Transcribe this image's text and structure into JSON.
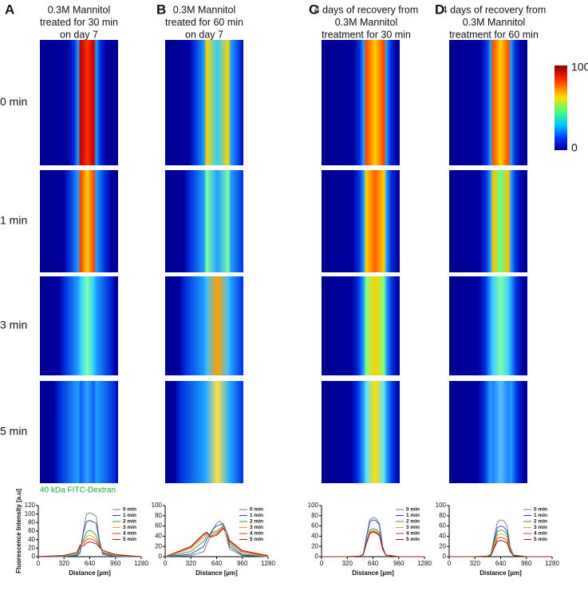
{
  "panels": [
    {
      "letter": "A",
      "title": [
        "0.3M Mannitol",
        "treated for 30 min",
        "on day 7"
      ]
    },
    {
      "letter": "B",
      "title": [
        "0.3M Mannitol",
        "treated for 60 min",
        "on day 7"
      ]
    },
    {
      "letter": "C",
      "title": [
        "4 days of recovery from",
        "0.3M Mannitol",
        "treatment for 30 min"
      ]
    },
    {
      "letter": "D",
      "title": [
        "4 days of recovery from",
        "0.3M Mannitol",
        "treatment for 60 min"
      ]
    }
  ],
  "row_labels": [
    "0 min",
    "1 min",
    "3 min",
    "5 min"
  ],
  "colorbar": {
    "ticks": [
      0,
      100
    ]
  },
  "stain_label": "40 kDa FITC-Dextran",
  "chart_data": [
    {
      "type": "line",
      "xlabel": "Distance [µm]",
      "ylabel": "Fluorescence Intensity [a.u]",
      "x": [
        0,
        320,
        480,
        520,
        560,
        600,
        640,
        680,
        720,
        760,
        800,
        960,
        1280
      ],
      "xlim": [
        0,
        1280
      ],
      "xticks": [
        0,
        320,
        640,
        960,
        1280
      ],
      "ylim": [
        0,
        120
      ],
      "yticks": [
        0,
        20,
        40,
        60,
        80,
        100,
        120
      ],
      "series": [
        {
          "name": "0 min",
          "color": "#777777",
          "values": [
            0,
            0,
            2,
            8,
            60,
            100,
            103,
            100,
            95,
            40,
            5,
            0,
            0
          ]
        },
        {
          "name": "1 min",
          "color": "#1f3fbf",
          "values": [
            0,
            0,
            3,
            12,
            55,
            82,
            85,
            82,
            78,
            35,
            8,
            0,
            0
          ]
        },
        {
          "name": "2 min",
          "color": "#2ca02c",
          "values": [
            0,
            1,
            5,
            20,
            40,
            58,
            62,
            58,
            50,
            28,
            10,
            2,
            0
          ]
        },
        {
          "name": "3 min",
          "color": "#f0a030",
          "values": [
            0,
            2,
            8,
            25,
            35,
            48,
            50,
            47,
            40,
            25,
            12,
            3,
            0
          ]
        },
        {
          "name": "4 min",
          "color": "#e8301c",
          "values": [
            0,
            3,
            10,
            28,
            30,
            40,
            42,
            40,
            35,
            25,
            15,
            4,
            0
          ]
        },
        {
          "name": "5 min",
          "color": "#8b1a1a",
          "values": [
            0,
            3,
            10,
            25,
            25,
            32,
            35,
            33,
            30,
            22,
            15,
            5,
            0
          ]
        }
      ]
    },
    {
      "type": "line",
      "xlabel": "Distance [µm]",
      "x": [
        0,
        320,
        480,
        520,
        560,
        600,
        640,
        680,
        720,
        760,
        800,
        960,
        1280
      ],
      "xlim": [
        0,
        1280
      ],
      "xticks": [
        0,
        320,
        640,
        960,
        1280
      ],
      "ylim": [
        0,
        100
      ],
      "yticks": [
        0,
        20,
        40,
        60,
        80,
        100
      ],
      "series": [
        {
          "name": "0 min",
          "color": "#777777",
          "values": [
            0,
            2,
            10,
            25,
            40,
            55,
            65,
            70,
            60,
            40,
            15,
            2,
            0
          ]
        },
        {
          "name": "1 min",
          "color": "#1f3fbf",
          "values": [
            0,
            5,
            20,
            35,
            45,
            55,
            60,
            62,
            65,
            50,
            20,
            3,
            0
          ]
        },
        {
          "name": "2 min",
          "color": "#2ca02c",
          "values": [
            0,
            10,
            30,
            42,
            45,
            48,
            50,
            55,
            60,
            50,
            25,
            5,
            0
          ]
        },
        {
          "name": "3 min",
          "color": "#f0a030",
          "values": [
            0,
            15,
            38,
            45,
            42,
            45,
            48,
            52,
            58,
            50,
            28,
            8,
            0
          ]
        },
        {
          "name": "4 min",
          "color": "#e8301c",
          "values": [
            0,
            18,
            42,
            47,
            40,
            42,
            45,
            50,
            56,
            50,
            30,
            10,
            1
          ]
        },
        {
          "name": "5 min",
          "color": "#8b1a1a",
          "values": [
            0,
            20,
            45,
            48,
            38,
            40,
            42,
            48,
            55,
            50,
            32,
            12,
            2
          ]
        }
      ]
    },
    {
      "type": "line",
      "xlabel": "Distance [µm]",
      "x": [
        0,
        320,
        480,
        520,
        560,
        600,
        640,
        680,
        720,
        760,
        800,
        960,
        1280
      ],
      "xlim": [
        0,
        1280
      ],
      "xticks": [
        0,
        320,
        640,
        960,
        1280
      ],
      "ylim": [
        0,
        100
      ],
      "yticks": [
        0,
        20,
        40,
        60,
        80,
        100
      ],
      "series": [
        {
          "name": "0 min",
          "color": "#777777",
          "values": [
            0,
            0,
            1,
            5,
            40,
            72,
            77,
            74,
            65,
            20,
            3,
            0,
            0
          ]
        },
        {
          "name": "1 min",
          "color": "#1f3fbf",
          "values": [
            0,
            0,
            1,
            5,
            38,
            68,
            72,
            70,
            62,
            19,
            3,
            0,
            0
          ]
        },
        {
          "name": "2 min",
          "color": "#2ca02c",
          "values": [
            0,
            0,
            1,
            4,
            30,
            52,
            55,
            53,
            48,
            16,
            3,
            0,
            0
          ]
        },
        {
          "name": "3 min",
          "color": "#f0a030",
          "values": [
            0,
            0,
            1,
            4,
            28,
            49,
            52,
            50,
            45,
            15,
            3,
            0,
            0
          ]
        },
        {
          "name": "4 min",
          "color": "#e8301c",
          "values": [
            0,
            0,
            1,
            4,
            27,
            47,
            50,
            48,
            43,
            15,
            3,
            0,
            0
          ]
        },
        {
          "name": "5 min",
          "color": "#8b1a1a",
          "values": [
            0,
            0,
            1,
            4,
            26,
            45,
            48,
            46,
            41,
            14,
            3,
            0,
            0
          ]
        }
      ]
    },
    {
      "type": "line",
      "xlabel": "Distance [µm]",
      "x": [
        0,
        320,
        480,
        520,
        560,
        600,
        640,
        680,
        720,
        760,
        800,
        960,
        1280
      ],
      "xlim": [
        0,
        1280
      ],
      "xticks": [
        0,
        320,
        640,
        960,
        1280
      ],
      "ylim": [
        0,
        100
      ],
      "yticks": [
        0,
        20,
        40,
        60,
        80,
        100
      ],
      "series": [
        {
          "name": "0 min",
          "color": "#777777",
          "values": [
            0,
            0,
            1,
            5,
            38,
            68,
            72,
            70,
            60,
            18,
            3,
            0,
            0
          ]
        },
        {
          "name": "1 min",
          "color": "#1f3fbf",
          "values": [
            0,
            0,
            1,
            4,
            32,
            57,
            60,
            58,
            50,
            16,
            3,
            0,
            0
          ]
        },
        {
          "name": "2 min",
          "color": "#2ca02c",
          "values": [
            0,
            0,
            1,
            4,
            28,
            49,
            52,
            50,
            44,
            14,
            3,
            0,
            0
          ]
        },
        {
          "name": "3 min",
          "color": "#f0a030",
          "values": [
            0,
            0,
            1,
            3,
            24,
            42,
            45,
            43,
            38,
            12,
            2,
            0,
            0
          ]
        },
        {
          "name": "4 min",
          "color": "#e8301c",
          "values": [
            0,
            0,
            1,
            3,
            20,
            36,
            38,
            36,
            32,
            10,
            2,
            0,
            0
          ]
        },
        {
          "name": "5 min",
          "color": "#8b1a1a",
          "values": [
            0,
            0,
            1,
            2,
            17,
            30,
            32,
            30,
            27,
            9,
            2,
            0,
            0
          ]
        }
      ]
    }
  ]
}
